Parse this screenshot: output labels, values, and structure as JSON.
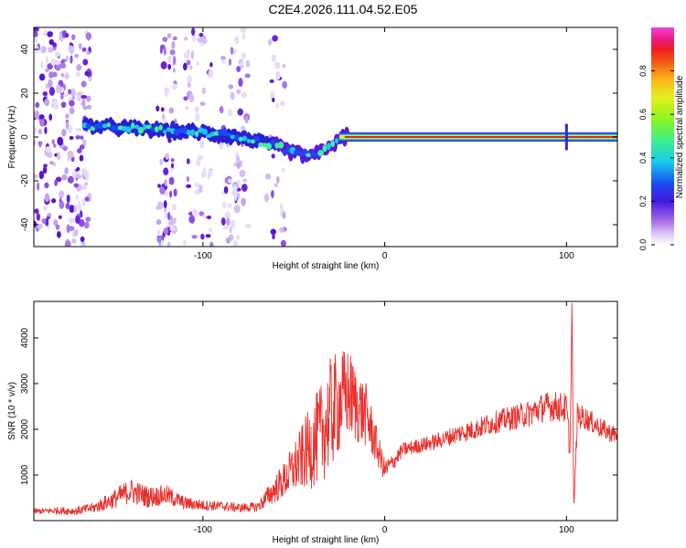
{
  "figure": {
    "title": "C2E4.2026.111.04.52.E05"
  },
  "chart_data": [
    {
      "type": "heatmap",
      "title": "C2E4.2026.111.04.52.E05",
      "xlabel": "Height of straight line (km)",
      "ylabel": "Frequency (Hz)",
      "xlim": [
        -193,
        128
      ],
      "ylim": [
        -50,
        50
      ],
      "x_ticks": [
        -100,
        0,
        100
      ],
      "y_ticks": [
        -40,
        -20,
        0,
        20,
        40
      ],
      "colorbar": {
        "label": "Normalized spectral amplitude",
        "range": [
          0,
          1
        ],
        "ticks": [
          0.0,
          0.2,
          0.4,
          0.6,
          0.8
        ],
        "colors": [
          "#ffffff",
          "#e6d5f5",
          "#b583e8",
          "#7a2de0",
          "#3a1ad6",
          "#1a4cf2",
          "#19c8f0",
          "#3cf0a0",
          "#7af528",
          "#d7f01e",
          "#fcc31a",
          "#f46a14",
          "#ec1e1e",
          "#ee1c8c",
          "#f03cd2"
        ]
      },
      "ridge": {
        "x": [
          -160,
          -140,
          -120,
          -100,
          -80,
          -60,
          -50,
          -40,
          -30,
          -20,
          -10,
          0,
          10,
          50,
          100,
          128
        ],
        "frequency": [
          5,
          4,
          3,
          2,
          0,
          -4,
          -7,
          -9,
          -4,
          1,
          1,
          1,
          0,
          0,
          0,
          0
        ]
      },
      "grid": false
    },
    {
      "type": "line",
      "xlabel": "Height of straight line (km)",
      "ylabel": "SNR (10 * v/v)",
      "xlim": [
        -193,
        128
      ],
      "ylim": [
        0,
        4800
      ],
      "x_ticks": [
        -100,
        0,
        100
      ],
      "y_ticks": [
        1000,
        2000,
        3000,
        4000
      ],
      "series_color": "#e8302c",
      "x": [
        -193,
        -180,
        -170,
        -160,
        -150,
        -140,
        -130,
        -120,
        -110,
        -100,
        -90,
        -80,
        -70,
        -60,
        -55,
        -50,
        -45,
        -40,
        -35,
        -30,
        -25,
        -20,
        -15,
        -10,
        -5,
        0,
        5,
        10,
        20,
        30,
        40,
        50,
        60,
        70,
        80,
        85,
        90,
        95,
        100,
        102,
        103,
        104,
        106,
        110,
        120,
        128
      ],
      "y": [
        200,
        220,
        210,
        280,
        450,
        650,
        520,
        560,
        380,
        340,
        320,
        280,
        300,
        700,
        900,
        1150,
        1400,
        1650,
        1900,
        2300,
        2600,
        2800,
        2500,
        2300,
        1700,
        1100,
        1300,
        1550,
        1650,
        1750,
        1900,
        2000,
        2150,
        2250,
        2350,
        2450,
        2500,
        2500,
        2450,
        1500,
        4800,
        200,
        2300,
        2250,
        2000,
        1850
      ],
      "noise_amplitude": [
        60,
        80,
        90,
        120,
        200,
        280,
        240,
        220,
        150,
        120,
        110,
        100,
        110,
        320,
        420,
        560,
        750,
        950,
        1100,
        1250,
        1150,
        1000,
        850,
        700,
        450,
        250,
        180,
        160,
        170,
        180,
        210,
        230,
        250,
        270,
        300,
        320,
        330,
        340,
        350,
        300,
        0,
        0,
        300,
        260,
        220,
        200
      ],
      "grid": false
    }
  ]
}
